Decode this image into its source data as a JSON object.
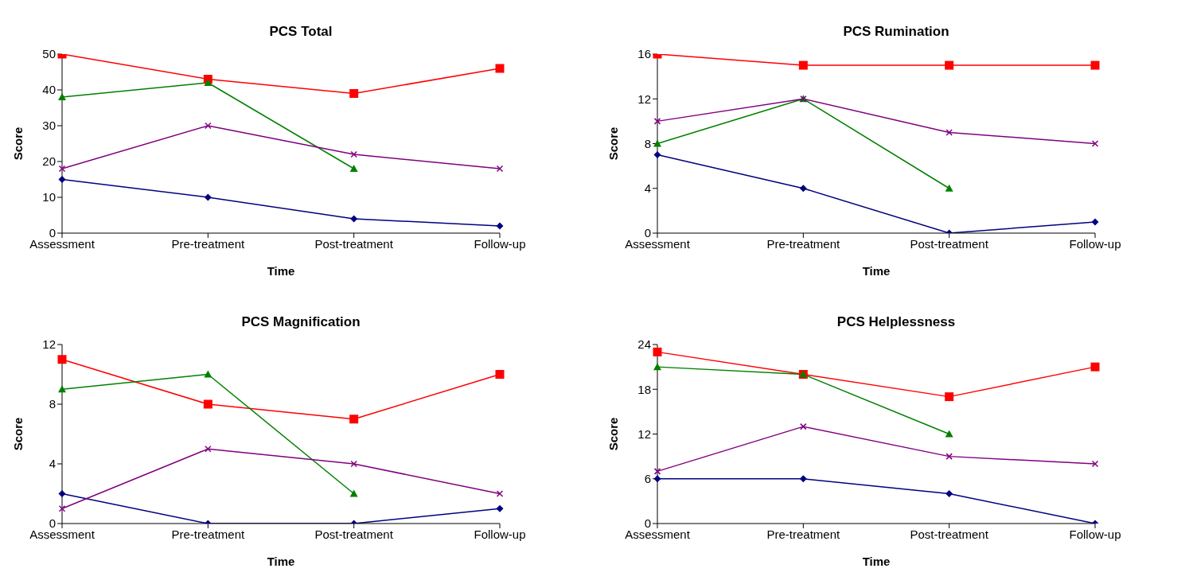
{
  "chart_data": [
    {
      "type": "line",
      "title": "PCS Total",
      "xlabel": "Time",
      "ylabel": "Score",
      "categories": [
        "Assessment",
        "Pre-treatment",
        "Post-treatment",
        "Follow-up"
      ],
      "ylim": [
        0,
        50
      ],
      "yticks": [
        0,
        10,
        20,
        30,
        40,
        50
      ],
      "grid": false,
      "legend": false,
      "series": [
        {
          "color": "#000080",
          "marker": "diamond",
          "values": [
            15,
            10,
            4,
            2
          ]
        },
        {
          "color": "#ff0000",
          "marker": "square",
          "values": [
            50,
            43,
            39,
            46
          ]
        },
        {
          "color": "#008000",
          "marker": "triangle",
          "values": [
            38,
            42,
            18,
            null
          ]
        },
        {
          "color": "#800080",
          "marker": "cross",
          "values": [
            18,
            30,
            22,
            18
          ]
        }
      ]
    },
    {
      "type": "line",
      "title": "PCS Rumination",
      "xlabel": "Time",
      "ylabel": "Score",
      "categories": [
        "Assessment",
        "Pre-treatment",
        "Post-treatment",
        "Follow-up"
      ],
      "ylim": [
        0,
        16
      ],
      "yticks": [
        0,
        4,
        8,
        12,
        16
      ],
      "grid": false,
      "legend": false,
      "series": [
        {
          "color": "#000080",
          "marker": "diamond",
          "values": [
            7,
            4,
            0,
            1
          ]
        },
        {
          "color": "#ff0000",
          "marker": "square",
          "values": [
            16,
            15,
            15,
            15
          ]
        },
        {
          "color": "#008000",
          "marker": "triangle",
          "values": [
            8,
            12,
            4,
            null
          ]
        },
        {
          "color": "#800080",
          "marker": "cross",
          "values": [
            10,
            12,
            9,
            8
          ]
        }
      ]
    },
    {
      "type": "line",
      "title": "PCS Magnification",
      "xlabel": "Time",
      "ylabel": "Score",
      "categories": [
        "Assessment",
        "Pre-treatment",
        "Post-treatment",
        "Follow-up"
      ],
      "ylim": [
        0,
        12
      ],
      "yticks": [
        0,
        4,
        8,
        12
      ],
      "grid": false,
      "legend": false,
      "series": [
        {
          "color": "#000080",
          "marker": "diamond",
          "values": [
            2,
            0,
            0,
            1
          ]
        },
        {
          "color": "#ff0000",
          "marker": "square",
          "values": [
            11,
            8,
            7,
            10
          ]
        },
        {
          "color": "#008000",
          "marker": "triangle",
          "values": [
            9,
            10,
            2,
            null
          ]
        },
        {
          "color": "#800080",
          "marker": "cross",
          "values": [
            1,
            5,
            4,
            2
          ]
        }
      ]
    },
    {
      "type": "line",
      "title": "PCS Helplessness",
      "xlabel": "Time",
      "ylabel": "Score",
      "categories": [
        "Assessment",
        "Pre-treatment",
        "Post-treatment",
        "Follow-up"
      ],
      "ylim": [
        0,
        24
      ],
      "yticks": [
        0,
        6,
        12,
        18,
        24
      ],
      "grid": false,
      "legend": false,
      "series": [
        {
          "color": "#000080",
          "marker": "diamond",
          "values": [
            6,
            6,
            4,
            0
          ]
        },
        {
          "color": "#ff0000",
          "marker": "square",
          "values": [
            23,
            20,
            17,
            21
          ]
        },
        {
          "color": "#008000",
          "marker": "triangle",
          "values": [
            21,
            20,
            12,
            null
          ]
        },
        {
          "color": "#800080",
          "marker": "cross",
          "values": [
            7,
            13,
            9,
            8
          ]
        }
      ]
    }
  ]
}
